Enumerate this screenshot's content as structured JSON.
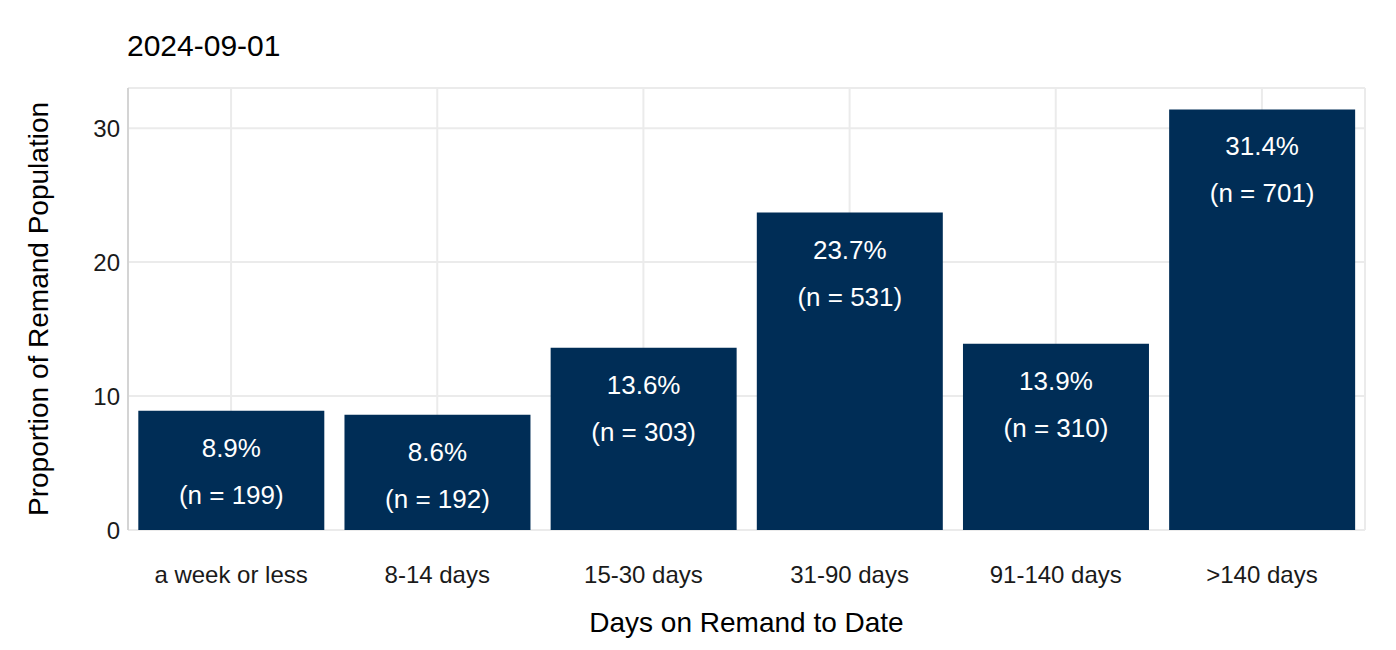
{
  "chart_data": {
    "type": "bar",
    "title": "2024-09-01",
    "x_label": "Days on Remand to Date",
    "y_label": "Proportion of Remand Population",
    "categories": [
      "a week or less",
      "8-14 days",
      "15-30 days",
      "31-90 days",
      "91-140 days",
      ">140 days"
    ],
    "values": [
      8.9,
      8.6,
      13.6,
      23.7,
      13.9,
      31.4
    ],
    "value_labels": [
      [
        "8.9%",
        "(n = 199)"
      ],
      [
        "8.6%",
        "(n = 192)"
      ],
      [
        "13.6%",
        "(n = 303)"
      ],
      [
        "23.7%",
        "(n = 531)"
      ],
      [
        "13.9%",
        "(n = 310)"
      ],
      [
        "31.4%",
        "(n = 701)"
      ]
    ],
    "color": "#002d56",
    "ylim": [
      0,
      33
    ],
    "yticks": [
      0,
      10,
      20,
      30
    ],
    "grid": true,
    "data_labels": true
  }
}
